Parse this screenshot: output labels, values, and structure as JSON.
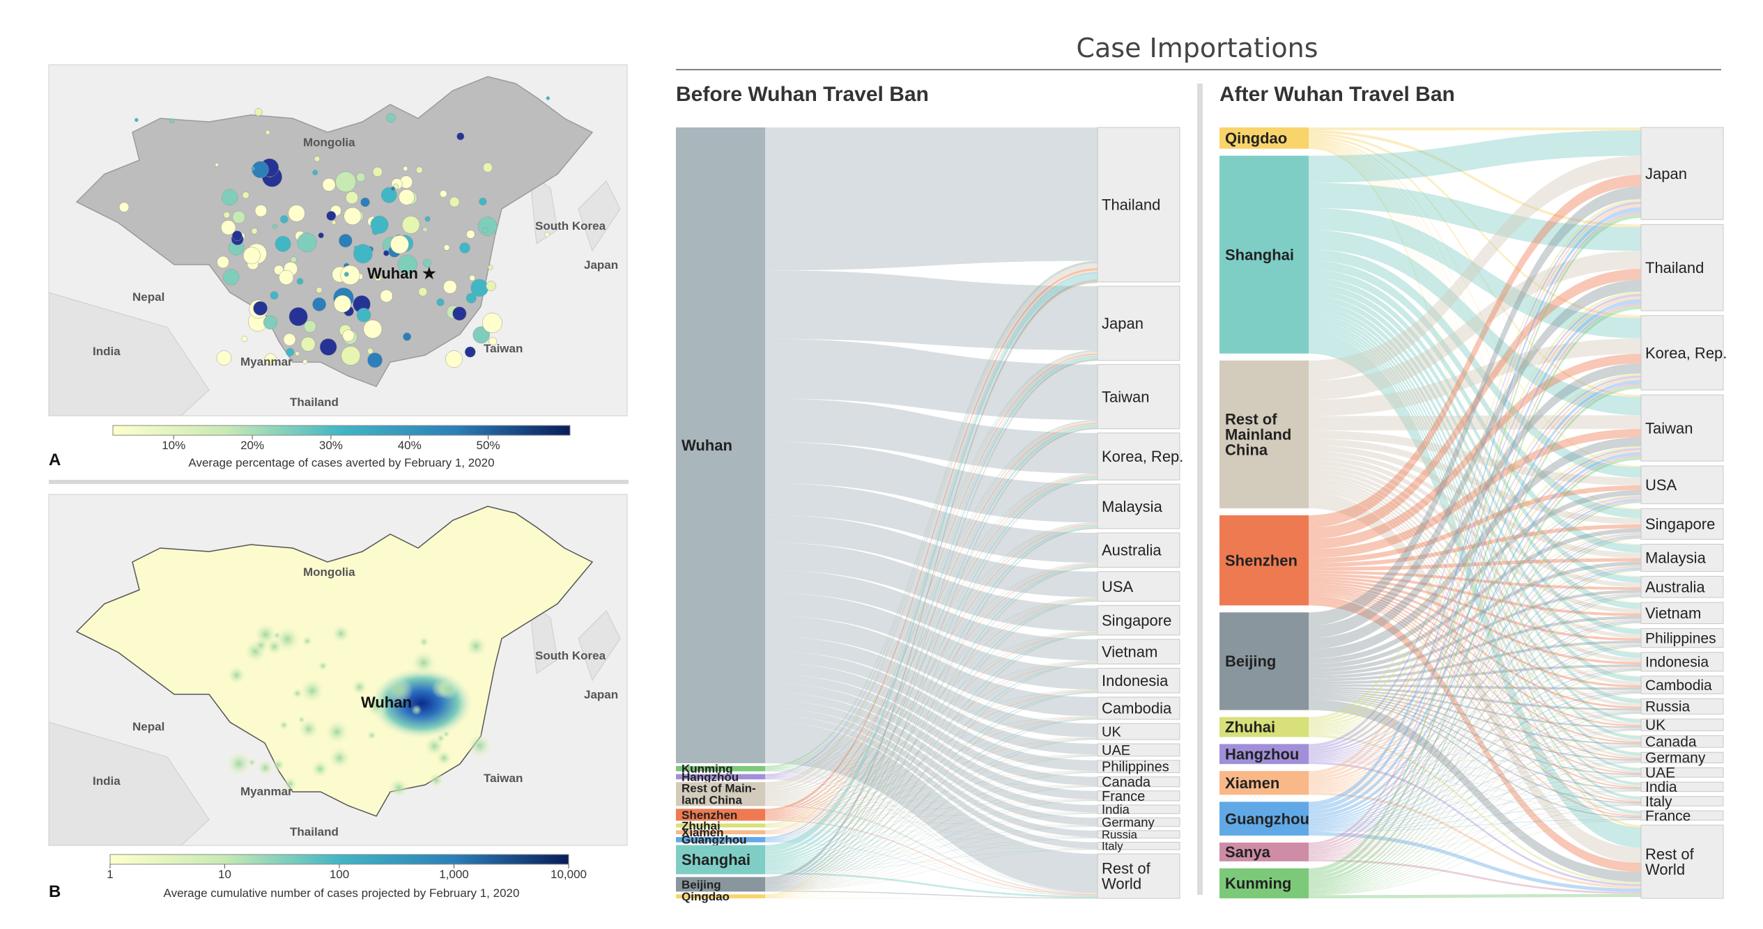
{
  "title": "Case Importations",
  "colors": {
    "Wuhan": "#a9b6bc",
    "Kunming": "#7cc97a",
    "Hangzhou": "#a28fd9",
    "Rest of Mainland China": "#d3cbbb",
    "Shenzhen": "#ee7a52",
    "Zhuhai": "#d8e07a",
    "Xiamen": "#f9b887",
    "Guangzhou": "#61a9e6",
    "Shanghai": "#7fcec6",
    "Beijing": "#8a969e",
    "Qingdao": "#f8d46a",
    "Sanya": "#cf8ca6",
    "dest": "#ededed"
  },
  "map_a": {
    "panel": "A",
    "labels": {
      "mongolia": "Mongolia",
      "south_korea": "South Korea",
      "japan": "Japan",
      "nepal": "Nepal",
      "india": "India",
      "myanmar": "Myanmar",
      "thailand": "Thailand",
      "taiwan": "Taiwan",
      "wuhan": "Wuhan ★"
    },
    "colorbar": {
      "ticks": [
        "10%",
        "20%",
        "30%",
        "40%",
        "50%"
      ],
      "title": "Average percentage of cases averted by February 1, 2020"
    }
  },
  "map_b": {
    "panel": "B",
    "labels": {
      "mongolia": "Mongolia",
      "south_korea": "South Korea",
      "japan": "Japan",
      "nepal": "Nepal",
      "india": "India",
      "myanmar": "Myanmar",
      "thailand": "Thailand",
      "taiwan": "Taiwan",
      "wuhan": "Wuhan"
    },
    "colorbar": {
      "ticks": [
        "1",
        "10",
        "100",
        "1,000",
        "10,000"
      ],
      "title": "Average cumulative number of cases projected by February 1, 2020"
    }
  },
  "chart_data": [
    {
      "type": "sankey",
      "title": "Before Wuhan Travel Ban",
      "sources": [
        {
          "name": "Wuhan",
          "label": "Wuhan",
          "value": 480
        },
        {
          "name": "Kunming",
          "label": "Kunming",
          "value": 4
        },
        {
          "name": "Hangzhou",
          "label": "Hangzhou",
          "value": 4
        },
        {
          "name": "Rest of Mainland China",
          "label": "Rest of Main-\nland China",
          "value": 18
        },
        {
          "name": "Shenzhen",
          "label": "Shenzhen",
          "value": 9
        },
        {
          "name": "Zhuhai",
          "label": "Zhuhai",
          "value": 3
        },
        {
          "name": "Xiamen",
          "label": "Xiamen",
          "value": 3
        },
        {
          "name": "Guangzhou",
          "label": "Guangzhou",
          "value": 4
        },
        {
          "name": "Shanghai",
          "label": "Shanghai",
          "value": 22
        },
        {
          "name": "Beijing",
          "label": "Beijing",
          "value": 11
        },
        {
          "name": "Qingdao",
          "label": "Qingdao",
          "value": 3
        }
      ],
      "destinations": [
        {
          "name": "Thailand",
          "value": 125
        },
        {
          "name": "Japan",
          "value": 60
        },
        {
          "name": "Taiwan",
          "value": 52
        },
        {
          "name": "Korea, Rep.",
          "value": 38
        },
        {
          "name": "Malaysia",
          "value": 36
        },
        {
          "name": "Australia",
          "value": 28
        },
        {
          "name": "USA",
          "value": 24
        },
        {
          "name": "Singapore",
          "value": 24
        },
        {
          "name": "Vietnam",
          "value": 20
        },
        {
          "name": "Indonesia",
          "value": 20
        },
        {
          "name": "Cambodia",
          "value": 18
        },
        {
          "name": "UK",
          "value": 13
        },
        {
          "name": "UAE",
          "value": 10
        },
        {
          "name": "Philippines",
          "value": 10
        },
        {
          "name": "Canada",
          "value": 8
        },
        {
          "name": "France",
          "value": 8
        },
        {
          "name": "India",
          "value": 7
        },
        {
          "name": "Germany",
          "value": 7
        },
        {
          "name": "Russia",
          "value": 6
        },
        {
          "name": "Italy",
          "value": 6
        },
        {
          "name": "Rest of\nWorld",
          "value": 36
        }
      ]
    },
    {
      "type": "sankey",
      "title": "After Wuhan Travel Ban",
      "sources": [
        {
          "name": "Qingdao",
          "label": "Qingdao",
          "value": 17
        },
        {
          "name": "Shanghai",
          "label": "Shanghai",
          "value": 158
        },
        {
          "name": "Rest of Mainland China",
          "label": "Rest of\nMainland\nChina",
          "value": 118
        },
        {
          "name": "Shenzhen",
          "label": "Shenzhen",
          "value": 72
        },
        {
          "name": "Beijing",
          "label": "Beijing",
          "value": 78
        },
        {
          "name": "Zhuhai",
          "label": "Zhuhai",
          "value": 16
        },
        {
          "name": "Hangzhou",
          "label": "Hangzhou",
          "value": 16
        },
        {
          "name": "Xiamen",
          "label": "Xiamen",
          "value": 19
        },
        {
          "name": "Guangzhou",
          "label": "Guangzhou",
          "value": 27
        },
        {
          "name": "Sanya",
          "label": "Sanya",
          "value": 15
        },
        {
          "name": "Kunming",
          "label": "Kunming",
          "value": 24
        }
      ],
      "destinations": [
        {
          "name": "Japan",
          "value": 78
        },
        {
          "name": "Thailand",
          "value": 73
        },
        {
          "name": "Korea, Rep.",
          "value": 63
        },
        {
          "name": "Taiwan",
          "value": 56
        },
        {
          "name": "USA",
          "value": 32
        },
        {
          "name": "Singapore",
          "value": 26
        },
        {
          "name": "Malaysia",
          "value": 23
        },
        {
          "name": "Australia",
          "value": 18
        },
        {
          "name": "Vietnam",
          "value": 18
        },
        {
          "name": "Philippines",
          "value": 16
        },
        {
          "name": "Indonesia",
          "value": 16
        },
        {
          "name": "Cambodia",
          "value": 15
        },
        {
          "name": "Russia",
          "value": 13
        },
        {
          "name": "UK",
          "value": 10
        },
        {
          "name": "Canada",
          "value": 10
        },
        {
          "name": "Germany",
          "value": 9
        },
        {
          "name": "UAE",
          "value": 8
        },
        {
          "name": "India",
          "value": 8
        },
        {
          "name": "Italy",
          "value": 8
        },
        {
          "name": "France",
          "value": 8
        },
        {
          "name": "Rest of\nWorld",
          "value": 62
        }
      ]
    }
  ]
}
